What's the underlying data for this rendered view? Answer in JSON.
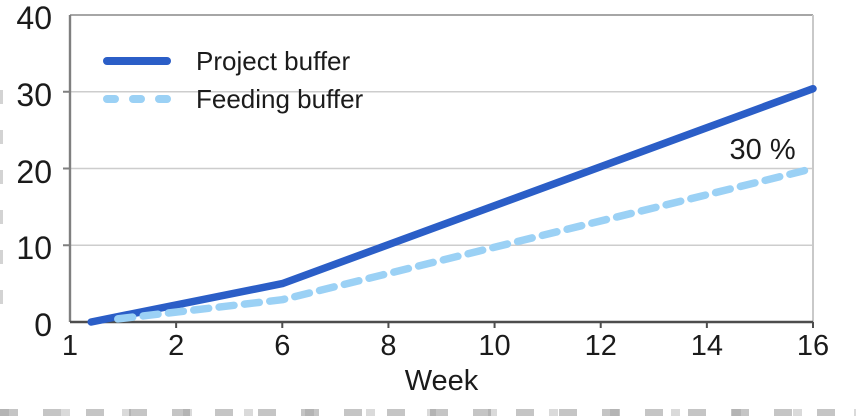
{
  "chart_data": {
    "type": "line",
    "title": "",
    "xlabel": "Week",
    "ylabel": "",
    "ylim": [
      0,
      40
    ],
    "x_ticks": [
      1,
      2,
      6,
      8,
      10,
      12,
      14,
      16
    ],
    "y_ticks": [
      0,
      10,
      20,
      30,
      40
    ],
    "grid": "horizontal gridlines at 10, 20, 30; framed plot area",
    "legend_position": "inside top-left",
    "series": [
      {
        "name": "Project buffer",
        "style": "solid",
        "color": "#2b5ec7",
        "points": [
          {
            "x": 1.2,
            "y": 0
          },
          {
            "x": 6,
            "y": 5
          },
          {
            "x": 16,
            "y": 30.4
          }
        ]
      },
      {
        "name": "Feeding buffer",
        "style": "dashed",
        "color": "#9bd1f5",
        "points": [
          {
            "x": 1.45,
            "y": 0.4
          },
          {
            "x": 6,
            "y": 2.9
          },
          {
            "x": 16,
            "y": 20
          }
        ]
      }
    ],
    "annotation": {
      "text": "30 %",
      "x": 15.05,
      "y": 22.4
    },
    "colors": {
      "project_buffer_line": "#2b5ec7",
      "feeding_buffer_line": "#9bd1f5",
      "gridline": "#cdcdcd",
      "axis_dark": "#4d4d4d",
      "axis_light": "#c9c9c9",
      "text": "#1b1b1b"
    }
  }
}
